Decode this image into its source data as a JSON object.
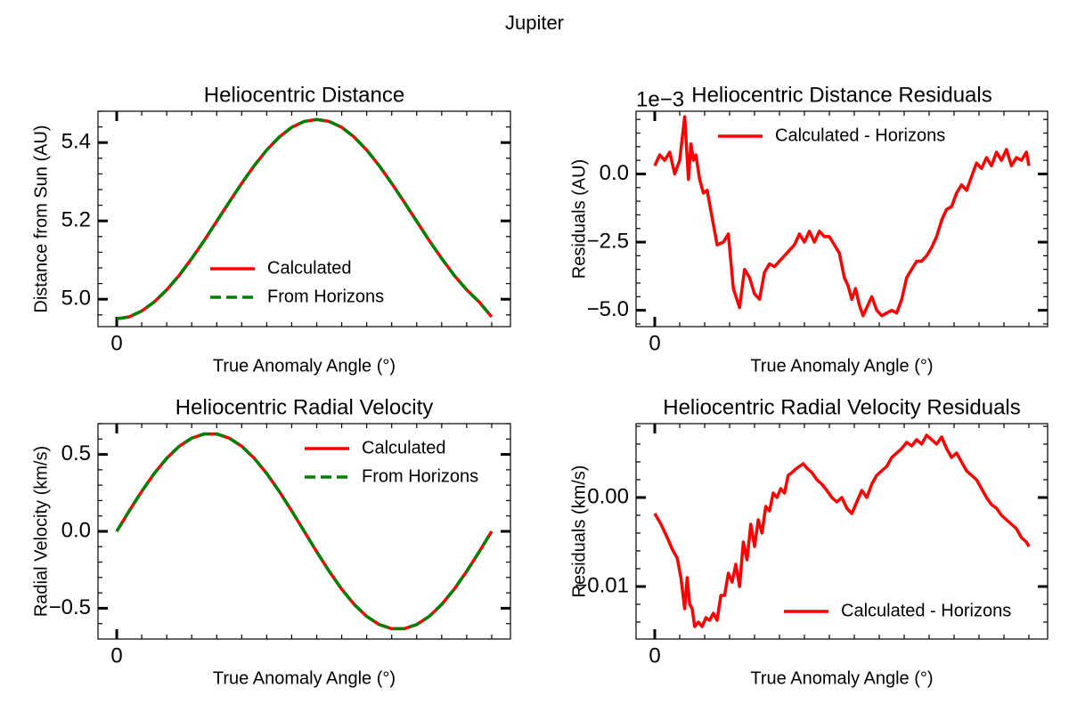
{
  "figure": {
    "suptitle": "Jupiter"
  },
  "colors": {
    "calculated": "#ff0000",
    "horizons": "#008000",
    "axes": "#000000"
  },
  "chart_data": [
    {
      "id": "distance",
      "type": "line",
      "title": "Heliocentric Distance",
      "xlabel": "True Anomaly Angle (°)",
      "ylabel": "Distance from Sun (AU)",
      "xlim": [
        -1.5,
        31.5
      ],
      "ylim": [
        4.93,
        5.48
      ],
      "xticks": [
        0
      ],
      "xtick_labels": [
        "0"
      ],
      "yticks": [
        5.0,
        5.2,
        5.4
      ],
      "ytick_labels": [
        "5.0",
        "5.2",
        "5.4"
      ],
      "legend": "lower-center",
      "series": [
        {
          "name": "Calculated",
          "style": "solid",
          "color": "#ff0000",
          "x": [
            0,
            1,
            2,
            3,
            4,
            5,
            6,
            7,
            8,
            9,
            10,
            11,
            12,
            13,
            14,
            15,
            16,
            17,
            18,
            19,
            20,
            21,
            22,
            23,
            24,
            25,
            26,
            27,
            28,
            29,
            30
          ],
          "values": [
            4.95,
            4.955,
            4.97,
            4.993,
            5.024,
            5.061,
            5.104,
            5.15,
            5.199,
            5.248,
            5.296,
            5.341,
            5.381,
            5.414,
            5.439,
            5.454,
            5.459,
            5.454,
            5.439,
            5.414,
            5.381,
            5.341,
            5.296,
            5.248,
            5.199,
            5.15,
            5.104,
            5.061,
            5.024,
            4.993,
            4.955
          ]
        },
        {
          "name": "From Horizons",
          "style": "dashed",
          "color": "#008000",
          "x": [
            0,
            1,
            2,
            3,
            4,
            5,
            6,
            7,
            8,
            9,
            10,
            11,
            12,
            13,
            14,
            15,
            16,
            17,
            18,
            19,
            20,
            21,
            22,
            23,
            24,
            25,
            26,
            27,
            28,
            29,
            30
          ],
          "values": [
            4.95,
            4.955,
            4.97,
            4.993,
            5.024,
            5.061,
            5.104,
            5.15,
            5.199,
            5.248,
            5.296,
            5.341,
            5.381,
            5.414,
            5.439,
            5.454,
            5.459,
            5.454,
            5.439,
            5.414,
            5.381,
            5.341,
            5.296,
            5.248,
            5.199,
            5.15,
            5.104,
            5.061,
            5.024,
            4.993,
            4.955
          ]
        }
      ]
    },
    {
      "id": "distance_residuals",
      "type": "line",
      "title": "Heliocentric Distance Residuals",
      "offset_text": "1e−3",
      "xlabel": "True Anomaly Angle (°)",
      "ylabel": "Residuals (AU)",
      "xlim": [
        -1.5,
        31.5
      ],
      "ylim": [
        -5.6,
        2.3
      ],
      "xticks": [
        0
      ],
      "xtick_labels": [
        "0"
      ],
      "yticks": [
        0.0,
        -2.5,
        -5.0
      ],
      "ytick_labels": [
        "0.0",
        "−2.5",
        "−5.0"
      ],
      "legend": "upper-center",
      "series": [
        {
          "name": "Calculated - Horizons",
          "style": "solid",
          "color": "#ff0000",
          "x": [
            0,
            0.4,
            0.8,
            1.2,
            1.6,
            2.0,
            2.4,
            2.7,
            2.9,
            3.1,
            3.3,
            3.6,
            3.9,
            4.2,
            4.6,
            5.0,
            5.5,
            5.9,
            6.3,
            6.8,
            7.2,
            7.6,
            8.0,
            8.4,
            8.8,
            9.2,
            9.6,
            10.0,
            10.4,
            10.8,
            11.2,
            11.6,
            12.0,
            12.4,
            12.8,
            13.2,
            13.6,
            14.0,
            14.4,
            14.8,
            15.2,
            15.5,
            15.8,
            16.1,
            16.4,
            16.7,
            17.0,
            17.4,
            17.8,
            18.2,
            18.6,
            19.0,
            19.4,
            19.8,
            20.2,
            20.6,
            21.0,
            21.4,
            21.8,
            22.2,
            22.6,
            23.0,
            23.4,
            23.8,
            24.2,
            24.6,
            25.0,
            25.4,
            25.8,
            26.2,
            26.6,
            27.0,
            27.4,
            27.8,
            28.2,
            28.6,
            29.0,
            29.4,
            29.8,
            30.0
          ],
          "values": [
            0.3,
            0.7,
            0.5,
            0.8,
            0.0,
            0.5,
            2.1,
            -0.2,
            1.1,
            0.5,
            0.7,
            -0.2,
            -0.7,
            -0.6,
            -1.6,
            -2.6,
            -2.5,
            -2.2,
            -4.2,
            -4.9,
            -3.5,
            -3.8,
            -4.4,
            -4.6,
            -3.6,
            -3.3,
            -3.4,
            -3.2,
            -3.0,
            -2.8,
            -2.6,
            -2.2,
            -2.5,
            -2.1,
            -2.5,
            -2.1,
            -2.3,
            -2.3,
            -2.6,
            -2.9,
            -3.8,
            -4.1,
            -4.6,
            -4.2,
            -4.8,
            -5.2,
            -4.9,
            -4.5,
            -5.0,
            -5.2,
            -5.1,
            -5.0,
            -5.1,
            -4.6,
            -3.8,
            -3.5,
            -3.2,
            -3.2,
            -3.0,
            -2.7,
            -2.3,
            -1.7,
            -1.3,
            -1.2,
            -0.7,
            -0.4,
            -0.6,
            -0.1,
            0.4,
            0.2,
            0.6,
            0.3,
            0.8,
            0.5,
            0.9,
            0.3,
            0.6,
            0.5,
            0.8,
            0.3
          ]
        }
      ]
    },
    {
      "id": "radial_velocity",
      "type": "line",
      "title": "Heliocentric Radial Velocity",
      "xlabel": "True Anomaly Angle (°)",
      "ylabel": "Radial Velocity (km/s)",
      "xlim": [
        -1.5,
        31.5
      ],
      "ylim": [
        -0.7,
        0.7
      ],
      "xticks": [
        0
      ],
      "xtick_labels": [
        "0"
      ],
      "yticks": [
        0.5,
        0.0,
        -0.5
      ],
      "ytick_labels": [
        "0.5",
        "0.0",
        "−0.5"
      ],
      "legend": "upper-right",
      "series": [
        {
          "name": "Calculated",
          "style": "solid",
          "color": "#ff0000",
          "x": [
            0,
            1,
            2,
            3,
            4,
            5,
            6,
            7,
            8,
            9,
            10,
            11,
            12,
            13,
            14,
            15,
            16,
            17,
            18,
            19,
            20,
            21,
            22,
            23,
            24,
            25,
            26,
            27,
            28,
            29,
            30
          ],
          "values": [
            0.0,
            0.133,
            0.26,
            0.376,
            0.475,
            0.553,
            0.606,
            0.633,
            0.633,
            0.606,
            0.553,
            0.475,
            0.376,
            0.26,
            0.133,
            0.0,
            -0.133,
            -0.26,
            -0.376,
            -0.475,
            -0.553,
            -0.606,
            -0.633,
            -0.633,
            -0.606,
            -0.553,
            -0.475,
            -0.376,
            -0.26,
            -0.133,
            0.0
          ]
        },
        {
          "name": "From Horizons",
          "style": "dashed",
          "color": "#008000",
          "x": [
            0,
            1,
            2,
            3,
            4,
            5,
            6,
            7,
            8,
            9,
            10,
            11,
            12,
            13,
            14,
            15,
            16,
            17,
            18,
            19,
            20,
            21,
            22,
            23,
            24,
            25,
            26,
            27,
            28,
            29,
            30
          ],
          "values": [
            0.0,
            0.133,
            0.26,
            0.376,
            0.475,
            0.553,
            0.606,
            0.633,
            0.633,
            0.606,
            0.553,
            0.475,
            0.376,
            0.26,
            0.133,
            0.0,
            -0.133,
            -0.26,
            -0.376,
            -0.475,
            -0.553,
            -0.606,
            -0.633,
            -0.633,
            -0.606,
            -0.553,
            -0.475,
            -0.376,
            -0.26,
            -0.133,
            0.0
          ]
        }
      ]
    },
    {
      "id": "radial_velocity_residuals",
      "type": "line",
      "title": "Heliocentric Radial Velocity Residuals",
      "xlabel": "True Anomaly Angle (°)",
      "ylabel": "Residuals (km/s)",
      "xlim": [
        -1.5,
        31.5
      ],
      "ylim": [
        -0.0159,
        0.0083
      ],
      "xticks": [
        0
      ],
      "xtick_labels": [
        "0"
      ],
      "yticks": [
        0.0,
        -0.01
      ],
      "ytick_labels": [
        "0.00",
        "−0.01"
      ],
      "legend": "lower-right",
      "series": [
        {
          "name": "Calculated - Horizons",
          "style": "solid",
          "color": "#ff0000",
          "x": [
            0,
            0.5,
            1.0,
            1.4,
            1.8,
            2.1,
            2.4,
            2.6,
            2.8,
            3.0,
            3.2,
            3.5,
            3.8,
            4.1,
            4.4,
            4.7,
            5.0,
            5.3,
            5.6,
            5.9,
            6.2,
            6.5,
            6.8,
            7.1,
            7.4,
            7.7,
            8.0,
            8.3,
            8.6,
            8.9,
            9.2,
            9.5,
            9.8,
            10.1,
            10.4,
            10.7,
            11.0,
            11.3,
            11.6,
            11.9,
            12.2,
            12.6,
            13.0,
            13.4,
            13.8,
            14.2,
            14.6,
            15.0,
            15.4,
            15.8,
            16.2,
            16.6,
            17.0,
            17.4,
            17.8,
            18.2,
            18.6,
            19.0,
            19.4,
            19.8,
            20.2,
            20.6,
            21.0,
            21.4,
            21.8,
            22.2,
            22.6,
            23.0,
            23.4,
            23.8,
            24.2,
            24.6,
            25.0,
            25.4,
            25.8,
            26.2,
            26.6,
            27.0,
            27.4,
            27.8,
            28.2,
            28.6,
            29.0,
            29.4,
            29.8,
            30.0
          ],
          "values": [
            -0.0018,
            -0.003,
            -0.0045,
            -0.0058,
            -0.0068,
            -0.009,
            -0.0125,
            -0.009,
            -0.012,
            -0.0125,
            -0.0145,
            -0.014,
            -0.0145,
            -0.0135,
            -0.0138,
            -0.013,
            -0.0138,
            -0.011,
            -0.011,
            -0.0085,
            -0.0095,
            -0.0075,
            -0.01,
            -0.005,
            -0.007,
            -0.003,
            -0.0055,
            -0.0025,
            -0.004,
            -0.001,
            -0.0015,
            0.0005,
            0.0,
            0.001,
            0.0005,
            0.0025,
            0.0028,
            0.0032,
            0.0035,
            0.0038,
            0.0033,
            0.0028,
            0.002,
            0.0015,
            0.0008,
            0.0,
            -0.0005,
            0.0,
            -0.0012,
            -0.0018,
            -0.0005,
            0.0008,
            0.0,
            0.0015,
            0.0025,
            0.003,
            0.0035,
            0.0045,
            0.005,
            0.0055,
            0.0062,
            0.0058,
            0.0065,
            0.006,
            0.007,
            0.0065,
            0.006,
            0.0068,
            0.0055,
            0.0045,
            0.005,
            0.004,
            0.003,
            0.0025,
            0.002,
            0.001,
            0.0,
            -0.0008,
            -0.0012,
            -0.002,
            -0.0025,
            -0.003,
            -0.0035,
            -0.0045,
            -0.005,
            -0.0055
          ]
        }
      ]
    }
  ]
}
